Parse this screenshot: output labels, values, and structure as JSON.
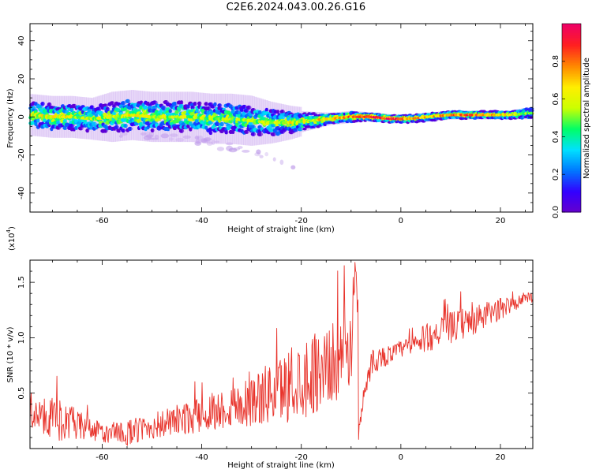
{
  "title": "C2E6.2024.043.00.26.G16",
  "colors": {
    "snr_line": "#e8322a",
    "colormap": [
      "#6600cc",
      "#3300ff",
      "#0077ff",
      "#00e0ff",
      "#00ff66",
      "#ccff00",
      "#ffee00",
      "#ff8800",
      "#ff2020",
      "#ee0066"
    ]
  },
  "chart_data": [
    {
      "type": "heatmap",
      "xlabel": "Height of straight line (km)",
      "ylabel": "Frequency (Hz)",
      "xlim": [
        -74.5,
        26.5
      ],
      "ylim": [
        -50,
        49
      ],
      "xticks": [
        -60,
        -40,
        -20,
        0,
        20
      ],
      "yticks": [
        -40,
        -20,
        0,
        20,
        40
      ],
      "grid": false,
      "colorbar": {
        "label": "Normalized spectral amplitude",
        "range": [
          0.0,
          1.0
        ],
        "ticks": [
          0.0,
          0.2,
          0.4,
          0.6,
          0.8
        ],
        "tick_labels": [
          "0.0",
          "0.2",
          "0.4",
          "0.6",
          "0.8"
        ]
      },
      "ridge": {
        "x": [
          -74,
          -70,
          -66,
          -62,
          -58,
          -54,
          -50,
          -46,
          -42,
          -38,
          -34,
          -30,
          -26,
          -22,
          -18,
          -14,
          -10,
          -6,
          -2,
          2,
          6,
          10,
          14,
          18,
          22,
          26
        ],
        "center_freq": [
          1,
          0,
          0,
          -1,
          0,
          1,
          0,
          0,
          0,
          -1,
          -1,
          -2,
          -3,
          -3,
          -2,
          -1,
          0,
          0,
          -1,
          -1,
          0,
          1,
          1,
          1,
          1,
          2
        ],
        "spread_hz": [
          5,
          5,
          5,
          5,
          6,
          6,
          6,
          6,
          6,
          6,
          6,
          6,
          5,
          4,
          3,
          2,
          2,
          1.5,
          1.5,
          1.5,
          1.5,
          1.5,
          1.5,
          1.5,
          1.5,
          2
        ],
        "peak_amplitude": [
          0.6,
          0.6,
          0.6,
          0.55,
          0.55,
          0.6,
          0.55,
          0.55,
          0.55,
          0.5,
          0.5,
          0.5,
          0.55,
          0.6,
          0.6,
          0.7,
          0.8,
          0.95,
          0.9,
          0.75,
          0.7,
          0.75,
          0.85,
          0.75,
          0.6,
          0.55
        ]
      },
      "faint_tail": {
        "x": [
          -60,
          -50,
          -40,
          -30,
          -25,
          -21
        ],
        "freq": [
          -8,
          -10,
          -13,
          -18,
          -22,
          -26
        ]
      }
    },
    {
      "type": "line",
      "xlabel": "Height of straight line (km)",
      "ylabel": "SNR (10 * v/v)",
      "y_multiplier_label": "(x10",
      "y_multiplier_exp": "4",
      "xlim": [
        -74.5,
        26.5
      ],
      "ylim": [
        0,
        1.7
      ],
      "xticks": [
        -60,
        -40,
        -20,
        0,
        20
      ],
      "yticks": [
        0.5,
        1.0,
        1.5
      ],
      "ytick_labels": [
        "0.5",
        "1.0",
        "1.5"
      ],
      "grid": false,
      "series": [
        {
          "x": [
            -74,
            -70,
            -66,
            -62,
            -58,
            -54,
            -50,
            -46,
            -42,
            -38,
            -34,
            -30,
            -26,
            -22,
            -18,
            -14,
            -12,
            -10,
            -9,
            -8,
            -6,
            -4,
            -2,
            0,
            2,
            4,
            6,
            8,
            10,
            12,
            14,
            16,
            18,
            20,
            22,
            24,
            26
          ],
          "y": [
            0.3,
            0.28,
            0.22,
            0.17,
            0.12,
            0.15,
            0.2,
            0.24,
            0.28,
            0.33,
            0.38,
            0.43,
            0.5,
            0.58,
            0.68,
            0.76,
            0.82,
            0.9,
            1.55,
            0.2,
            0.78,
            0.82,
            0.85,
            0.9,
            0.92,
            0.97,
            1.02,
            1.06,
            1.09,
            1.12,
            1.14,
            1.18,
            1.22,
            1.26,
            1.3,
            1.33,
            1.36
          ],
          "noise_amplitude": [
            0.12,
            0.2,
            0.16,
            0.1,
            0.1,
            0.12,
            0.12,
            0.14,
            0.15,
            0.17,
            0.2,
            0.24,
            0.28,
            0.34,
            0.38,
            0.36,
            0.36,
            0.34,
            0.1,
            0.1,
            0.12,
            0.1,
            0.08,
            0.08,
            0.1,
            0.12,
            0.14,
            0.12,
            0.14,
            0.14,
            0.14,
            0.12,
            0.12,
            0.1,
            0.08,
            0.06,
            0.05
          ]
        }
      ]
    }
  ]
}
